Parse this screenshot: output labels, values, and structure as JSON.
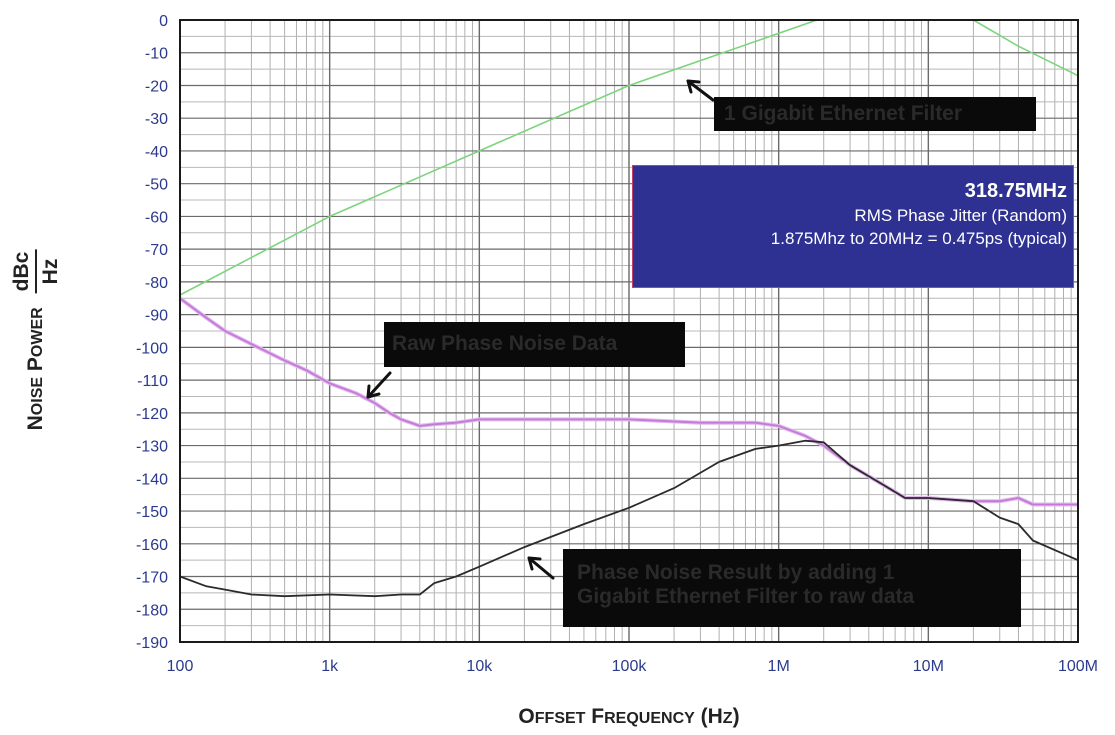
{
  "chart_data": {
    "type": "line",
    "xlabel": "Offset Frequency (Hz)",
    "ylabel": "Noise Power dBc/Hz",
    "ylabel_main": "Noise Power",
    "ylabel_unit_num": "dBc",
    "ylabel_unit_den": "Hz",
    "xscale": "log",
    "xlim": [
      100,
      100000000
    ],
    "ylim": [
      -190,
      0
    ],
    "grid": true,
    "x_ticks": [
      100,
      1000,
      10000,
      100000,
      1000000,
      10000000,
      100000000
    ],
    "x_tick_labels": [
      "100",
      "1k",
      "10k",
      "100k",
      "1M",
      "10M",
      "100M"
    ],
    "y_ticks": [
      0,
      -10,
      -20,
      -30,
      -40,
      -50,
      -60,
      -70,
      -80,
      -90,
      -100,
      -110,
      -120,
      -130,
      -140,
      -150,
      -160,
      -170,
      -180,
      -190
    ],
    "y_tick_labels": [
      "0",
      "-10",
      "-20",
      "-30",
      "-40",
      "-50",
      "-60",
      "-70",
      "-80",
      "-90",
      "-100",
      "-110",
      "-120",
      "-130",
      "-140",
      "-150",
      "-160",
      "-170",
      "-180",
      "-190"
    ],
    "series": [
      {
        "name": "1 Gigabit Ethernet Filter",
        "color": "#7cd47c",
        "points": [
          [
            100,
            -84
          ],
          [
            1000,
            -60
          ],
          [
            10000,
            -40
          ],
          [
            100000,
            -20
          ],
          [
            1800000,
            0
          ],
          [
            20000000,
            0
          ],
          [
            40000000,
            -8
          ],
          [
            100000000,
            -17
          ]
        ]
      },
      {
        "name": "Raw Phase Noise Data",
        "color": "#c27ad6",
        "points": [
          [
            100,
            -85
          ],
          [
            150,
            -91
          ],
          [
            200,
            -95
          ],
          [
            300,
            -99
          ],
          [
            500,
            -104
          ],
          [
            700,
            -107
          ],
          [
            1000,
            -111
          ],
          [
            1500,
            -114
          ],
          [
            2000,
            -117
          ],
          [
            2500,
            -120
          ],
          [
            3000,
            -122
          ],
          [
            4000,
            -124
          ],
          [
            5000,
            -123.5
          ],
          [
            7000,
            -123
          ],
          [
            10000,
            -122
          ],
          [
            30000,
            -122
          ],
          [
            100000,
            -122
          ],
          [
            300000,
            -123
          ],
          [
            700000,
            -123
          ],
          [
            1000000,
            -124
          ],
          [
            1500000,
            -127
          ],
          [
            2000000,
            -130
          ],
          [
            3000000,
            -136
          ],
          [
            5000000,
            -142
          ],
          [
            7000000,
            -146
          ],
          [
            10000000,
            -146
          ],
          [
            20000000,
            -147
          ],
          [
            30000000,
            -147
          ],
          [
            40000000,
            -146
          ],
          [
            50000000,
            -148
          ],
          [
            100000000,
            -148
          ]
        ]
      },
      {
        "name": "Phase Noise Result by adding 1 Gigabit Ethernet Filter to raw data",
        "color": "#2b2b2b",
        "points": [
          [
            100,
            -170
          ],
          [
            150,
            -173
          ],
          [
            200,
            -174
          ],
          [
            300,
            -175.5
          ],
          [
            500,
            -176
          ],
          [
            1000,
            -175.5
          ],
          [
            2000,
            -176
          ],
          [
            3000,
            -175.5
          ],
          [
            4000,
            -175.5
          ],
          [
            5000,
            -172
          ],
          [
            7000,
            -170
          ],
          [
            10000,
            -167
          ],
          [
            20000,
            -161
          ],
          [
            50000,
            -154
          ],
          [
            100000,
            -149
          ],
          [
            200000,
            -143
          ],
          [
            400000,
            -135
          ],
          [
            700000,
            -131
          ],
          [
            1000000,
            -130
          ],
          [
            1500000,
            -128.5
          ],
          [
            2000000,
            -129
          ],
          [
            3000000,
            -136
          ],
          [
            5000000,
            -142
          ],
          [
            7000000,
            -146
          ],
          [
            10000000,
            -146
          ],
          [
            20000000,
            -147
          ],
          [
            30000000,
            -152
          ],
          [
            40000000,
            -154
          ],
          [
            50000000,
            -159
          ],
          [
            100000000,
            -165
          ]
        ]
      }
    ],
    "annotations": [
      "1 Gigabit Ethernet Filter",
      "Raw Phase Noise Data",
      "Phase Noise Result by adding 1 Gigabit Ethernet Filter to raw data"
    ],
    "info_box": {
      "frequency": "318.75MHz",
      "title": "RMS Phase Jitter (Random)",
      "result": "1.875Mhz to 20MHz = 0.475ps (typical)"
    }
  },
  "labels": {
    "filter_callout": "1 Gigabit Ethernet Filter",
    "raw_callout": "Raw Phase Noise Data",
    "result_callout_line1": "Phase Noise Result by adding 1",
    "result_callout_line2": "Gigabit Ethernet Filter to raw data",
    "x_axis_offset_O": "O",
    "x_axis_offset_rest": "FFSET",
    "x_axis_freq_F": "F",
    "x_axis_freq_rest": "REQUENCY",
    "x_axis_paren_open": " (H",
    "x_axis_paren_z": "Z",
    "x_axis_paren_close": ")",
    "y_axis_noise_N": "N",
    "y_axis_noise_rest": "OISE",
    "y_axis_power_P": "P",
    "y_axis_power_rest": "OWER",
    "y_axis_unit_num": "dBc",
    "y_axis_unit_den": "Hz"
  }
}
